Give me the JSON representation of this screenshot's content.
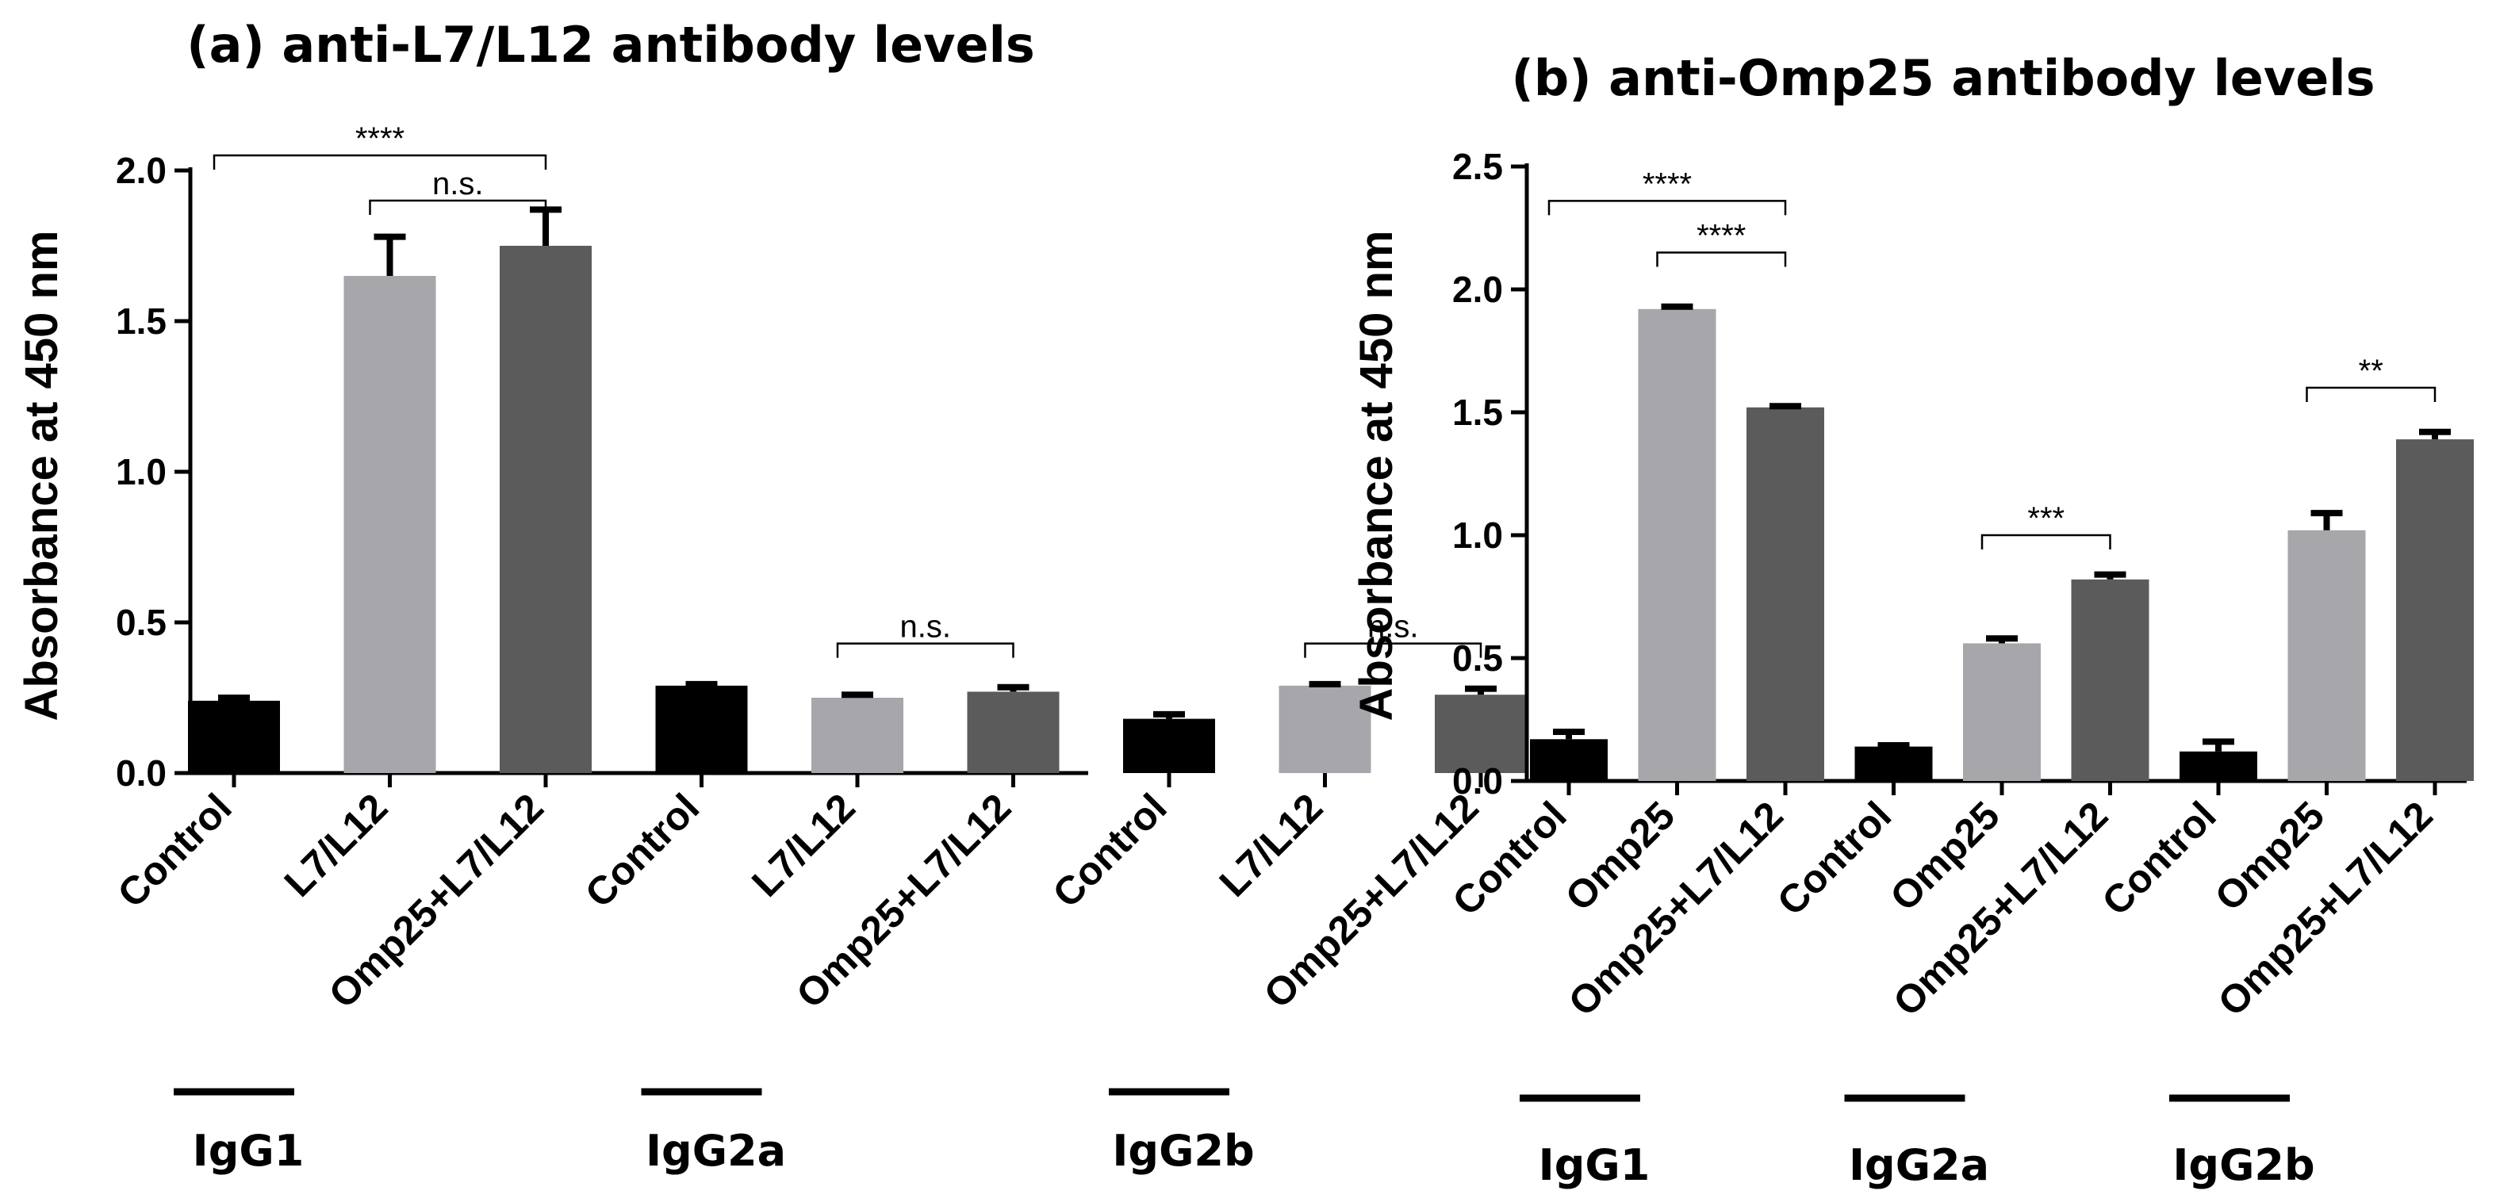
{
  "chart_data": [
    {
      "type": "bar",
      "title": "(a) anti-L7/L12 antibody levels",
      "ylabel": "Absorbance at 450 nm",
      "ylim": [
        0,
        2.0
      ],
      "yticks": [
        "0.0",
        "0.5",
        "1.0",
        "1.5",
        "2.0"
      ],
      "ytick_values": [
        0,
        0.5,
        1.0,
        1.5,
        2.0
      ],
      "categories": [
        "Control",
        "L7/L12",
        "Omp25+L7/L12",
        "Control",
        "L7/L12",
        "Omp25+L7/L12",
        "Control",
        "L7/L12",
        "Omp25+L7/L12"
      ],
      "values": [
        0.24,
        1.65,
        1.75,
        0.29,
        0.25,
        0.27,
        0.18,
        0.29,
        0.26
      ],
      "errors": [
        0.01,
        0.13,
        0.12,
        0.005,
        0.01,
        0.015,
        0.015,
        0.005,
        0.02
      ],
      "bar_colors": [
        "#000000",
        "#a6a6ab",
        "#5b5b5b",
        "#000000",
        "#a6a6ab",
        "#5b5b5b",
        "#000000",
        "#a6a6ab",
        "#5b5b5b"
      ],
      "groups": [
        "IgG1",
        "IgG2a",
        "IgG2b"
      ],
      "significance": [
        {
          "from": 0,
          "to": 2,
          "y": 2.05,
          "label": "****"
        },
        {
          "from": 1,
          "to": 2,
          "y": 1.9,
          "label": "n.s."
        },
        {
          "from": 4,
          "to": 5,
          "y": 0.43,
          "label": "n.s."
        },
        {
          "from": 7,
          "to": 8,
          "y": 0.43,
          "label": "n.s."
        }
      ]
    },
    {
      "type": "bar",
      "title": "(b) anti-Omp25 antibody levels",
      "ylabel": "Absorbance at 450 nm",
      "ylim": [
        0,
        2.5
      ],
      "yticks": [
        "0.0",
        "0.5",
        "1.0",
        "1.5",
        "2.0",
        "2.5"
      ],
      "ytick_values": [
        0,
        0.5,
        1.0,
        1.5,
        2.0,
        2.5
      ],
      "categories": [
        "Control",
        "Omp25",
        "Omp25+L7/L12",
        "Control",
        "Omp25",
        "Omp25+L7/L12",
        "Control",
        "Omp25",
        "Omp25+L7/L12"
      ],
      "values": [
        0.17,
        1.92,
        1.52,
        0.14,
        0.56,
        0.82,
        0.12,
        1.02,
        1.39
      ],
      "errors": [
        0.03,
        0.01,
        0.005,
        0.005,
        0.02,
        0.02,
        0.04,
        0.07,
        0.03
      ],
      "bar_colors": [
        "#000000",
        "#a6a6ab",
        "#5b5b5b",
        "#000000",
        "#a6a6ab",
        "#5b5b5b",
        "#000000",
        "#a6a6ab",
        "#5b5b5b"
      ],
      "groups": [
        "IgG1",
        "IgG2a",
        "IgG2b"
      ],
      "significance": [
        {
          "from": 0,
          "to": 2,
          "y": 2.36,
          "label": "****"
        },
        {
          "from": 1,
          "to": 2,
          "y": 2.15,
          "label": "****"
        },
        {
          "from": 4,
          "to": 5,
          "y": 1.0,
          "label": "***"
        },
        {
          "from": 7,
          "to": 8,
          "y": 1.6,
          "label": "**"
        }
      ]
    }
  ]
}
